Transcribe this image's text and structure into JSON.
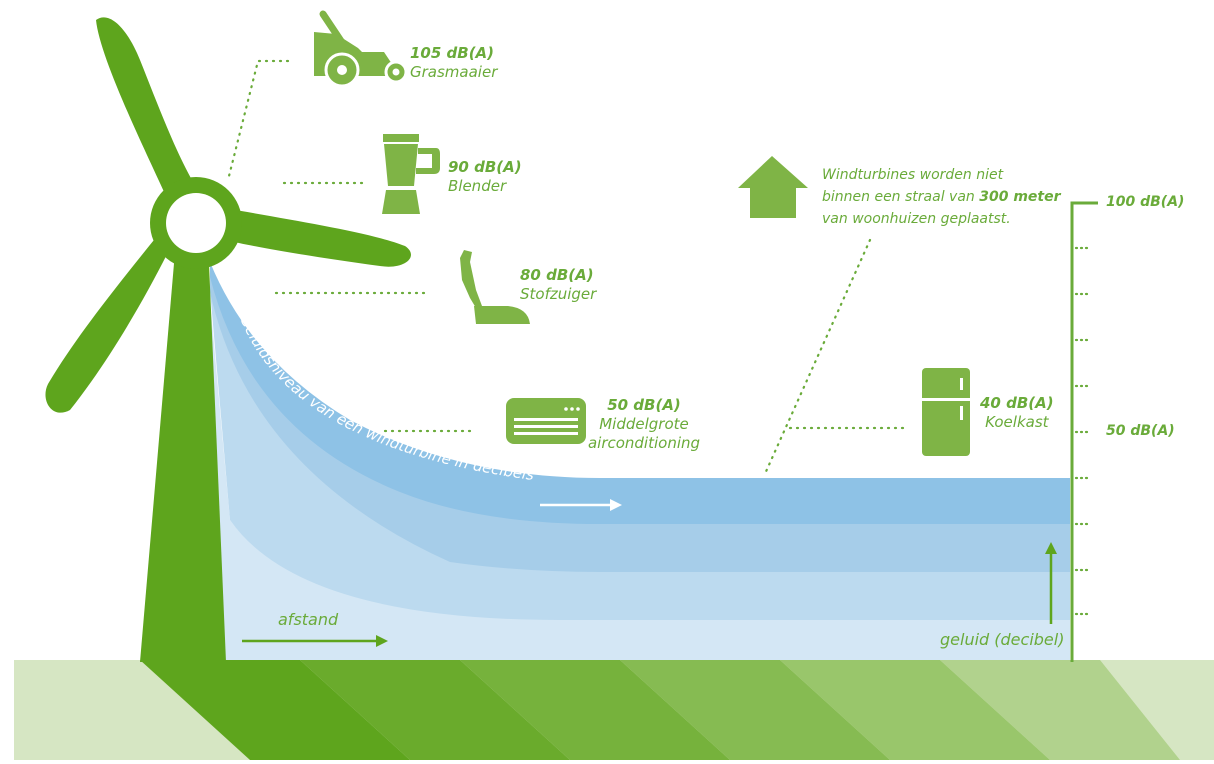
{
  "colors": {
    "green_dark": "#5ea51d",
    "green_icon": "#7fb446",
    "label_green": "#6aab3a",
    "blue_band_1": "#8ec2e6",
    "blue_band_2": "#a6cde9",
    "blue_band_3": "#bcdaef",
    "blue_band_4": "#d4e7f5",
    "ground_light": "#d6e6c3"
  },
  "items": [
    {
      "icon": "lawnmower-icon",
      "value": "105 dB(A)",
      "name": "Grasmaaier"
    },
    {
      "icon": "blender-icon",
      "value": "90 dB(A)",
      "name": "Blender"
    },
    {
      "icon": "vacuum-cleaner-icon",
      "value": "80 dB(A)",
      "name": "Stofzuiger"
    },
    {
      "icon": "air-conditioner-icon",
      "value": "50 dB(A)",
      "name": "Middelgrote airconditioning"
    },
    {
      "icon": "refrigerator-icon",
      "value": "40 dB(A)",
      "name": "Koelkast"
    }
  ],
  "note": {
    "line1": "Windturbines worden niet",
    "line2_pre": "binnen een straal van ",
    "line2_bold": "300 meter",
    "line3": "van woonhuizen geplaatst."
  },
  "curve_label": "Geluidsniveau van een windturbine in decibels",
  "scale": {
    "top": "100 dB(A)",
    "mid": "50 dB(A)"
  },
  "axis": {
    "x": "afstand",
    "y": "geluid (decibel)"
  }
}
